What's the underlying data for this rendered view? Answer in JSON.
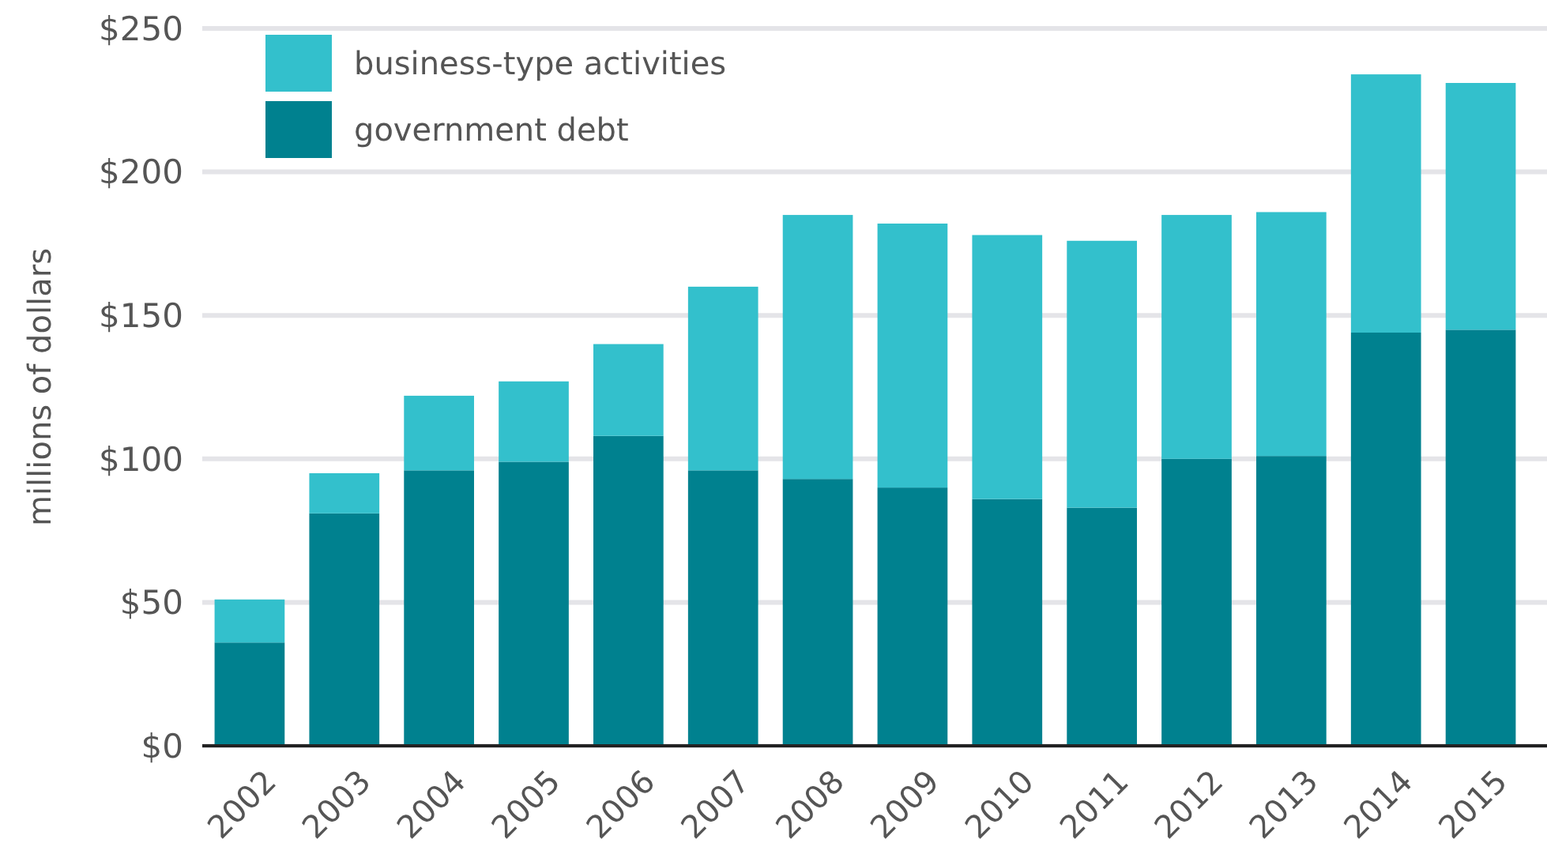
{
  "chart_data": {
    "type": "bar",
    "ylabel": "millions of dollars",
    "categories": [
      "2002",
      "2003",
      "2004",
      "2005",
      "2006",
      "2007",
      "2008",
      "2009",
      "2010",
      "2011",
      "2012",
      "2013",
      "2014",
      "2015"
    ],
    "stacked": true,
    "series": [
      {
        "name": "government debt",
        "color": "#00818f",
        "values": [
          36,
          81,
          96,
          99,
          108,
          96,
          93,
          90,
          86,
          83,
          100,
          101,
          144,
          145
        ]
      },
      {
        "name": "business-type activities",
        "color": "#33c0cc",
        "values": [
          15,
          14,
          26,
          28,
          32,
          64,
          92,
          92,
          92,
          93,
          85,
          85,
          90,
          86
        ]
      }
    ],
    "ylim": [
      0,
      250
    ],
    "yticks": [
      {
        "value": 0,
        "label": "$0"
      },
      {
        "value": 50,
        "label": "$50"
      },
      {
        "value": 100,
        "label": "$100"
      },
      {
        "value": 150,
        "label": "$150"
      },
      {
        "value": 200,
        "label": "$200"
      },
      {
        "value": 250,
        "label": "$250"
      }
    ],
    "grid": "y",
    "legend": "top left"
  }
}
